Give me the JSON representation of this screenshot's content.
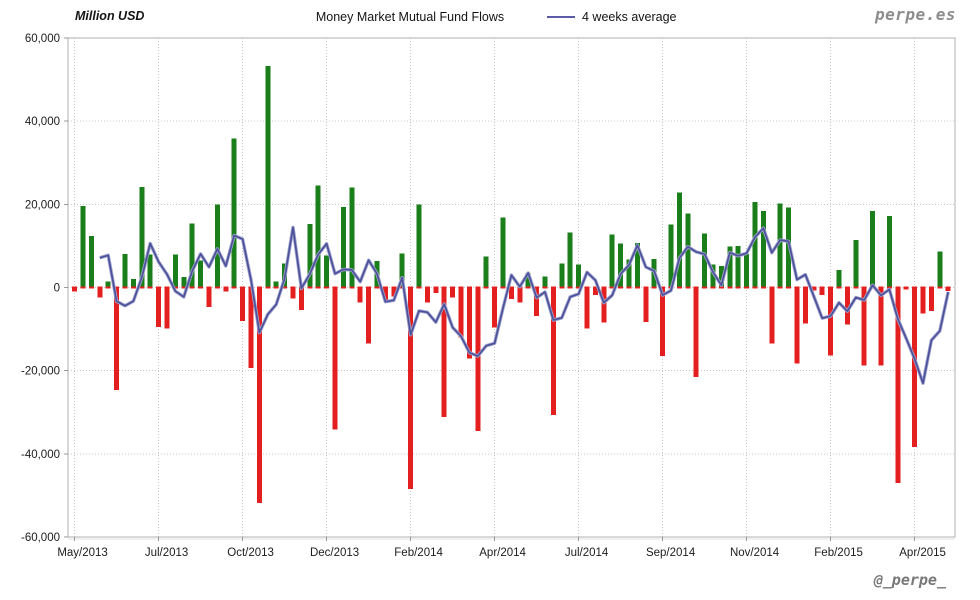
{
  "header": {
    "y_axis_title": "Million USD",
    "title": "Money Market Mutual Fund Flows",
    "legend_label": "4 weeks average",
    "brand": "perpe.es"
  },
  "footer": {
    "handle": "@_perpe_"
  },
  "colors": {
    "positive_bar": "#1a7e1a",
    "negative_bar": "#e41f1f",
    "average_line": "#4d5199",
    "average_line_halo": "#9fa3cf",
    "grid": "#c8c8c8",
    "plot_border": "#b0b0b0",
    "axis_text": "#1c1c1c",
    "brand_gray": "#8c8c8c"
  },
  "chart_data": {
    "type": "bar",
    "title": "Money Market Mutual Fund Flows",
    "unit": "Million USD",
    "x_unit": "week",
    "grid": true,
    "legend_position": "top-center",
    "ylim": [
      -60000,
      60000
    ],
    "y_tick_values": [
      60000,
      40000,
      20000,
      0,
      -20000,
      -40000,
      -60000
    ],
    "y_tick_labels": [
      "60,000",
      "40,000",
      "20,000",
      "0",
      "-20,000",
      "-40,000",
      "-60,000"
    ],
    "x_tick_labels": [
      "May/2013",
      "Jul/2013",
      "Oct/2013",
      "Dec/2013",
      "Feb/2014",
      "Apr/2014",
      "Jul/2014",
      "Sep/2014",
      "Nov/2014",
      "Feb/2015",
      "Apr/2015"
    ],
    "weeks_per_x_tick": 10,
    "values": [
      -1000,
      19600,
      12400,
      -2400,
      1400,
      -24700,
      8100,
      2100,
      24200,
      7900,
      -9500,
      -9900,
      7900,
      2500,
      15400,
      6500,
      -4700,
      19900,
      -1000,
      35800,
      -8100,
      -19300,
      -51800,
      53300,
      1400,
      5800,
      -2700,
      -5400,
      15300,
      24500,
      7700,
      -34200,
      19400,
      24000,
      -3600,
      -13500,
      6400,
      -3000,
      -2200,
      8200,
      -48500,
      20000,
      -3600,
      -1300,
      -31100,
      -2400,
      -12000,
      -17100,
      -34500,
      7500,
      -9600,
      16800,
      -2800,
      -3600,
      3500,
      -6900,
      2700,
      -30700,
      5800,
      13200,
      5500,
      -9900,
      -1800,
      -8400,
      12700,
      10600,
      6700,
      10700,
      -8300,
      6800,
      -16500,
      15100,
      22800,
      17800,
      -21500,
      13000,
      5500,
      5200,
      9800,
      10000,
      8000,
      20600,
      18400,
      -13500,
      20200,
      19200,
      -18300,
      -8700,
      -700,
      -1800,
      -16300,
      4200,
      -8900,
      11400,
      -18700,
      18400,
      -18700,
      17200,
      -47000,
      -500,
      -38300,
      -6300,
      -5700,
      8600,
      -800
    ],
    "series": [
      {
        "name": "4 weeks average",
        "type": "line",
        "derived_from": "values",
        "window": 4
      }
    ]
  }
}
